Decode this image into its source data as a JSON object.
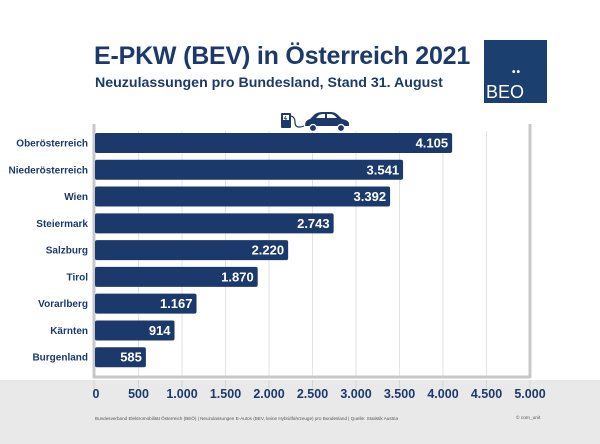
{
  "header": {
    "title": "E-PKW (BEV) in Österreich 2021",
    "subtitle": "Neuzulassungen pro Bundesland, Stand 31. August"
  },
  "logo": {
    "dots": "••",
    "text": "BEO"
  },
  "icons": {
    "charging": "charging-station-car-icon"
  },
  "colors": {
    "bar": "#1b3a6b",
    "text": "#1b3a6b",
    "grid": "#e2e2e2",
    "frame": "#c8c8c8",
    "band": "#e9e9e9"
  },
  "footer": {
    "source": "Bundesverband Elektromobilität Österreich (BEÖ) | Neuzulassungen E-Autos (BEV, keine Hybridfahrzeuge) pro Bundesland | Quelle: Statistik Austria",
    "credit": "© com_unit"
  },
  "chart_data": {
    "type": "bar",
    "orientation": "horizontal",
    "title": "E-PKW (BEV) in Österreich 2021",
    "subtitle": "Neuzulassungen pro Bundesland, Stand 31. August",
    "xlabel": "",
    "ylabel": "",
    "categories": [
      "Oberösterreich",
      "Niederösterreich",
      "Wien",
      "Steiermark",
      "Salzburg",
      "Tirol",
      "Vorarlberg",
      "Kärnten",
      "Burgenland"
    ],
    "values": [
      4105,
      3541,
      3392,
      2743,
      2220,
      1870,
      1167,
      914,
      585
    ],
    "value_labels": [
      "4.105",
      "3.541",
      "3.392",
      "2.743",
      "2.220",
      "1.870",
      "1.167",
      "914",
      "585"
    ],
    "xlim": [
      0,
      5000
    ],
    "xticks": [
      0,
      500,
      1000,
      1500,
      2000,
      2500,
      3000,
      3500,
      4000,
      4500,
      5000
    ],
    "xtick_labels": [
      "0",
      "500",
      "1.000",
      "1.500",
      "2.000",
      "2.500",
      "3.000",
      "3.500",
      "4.000",
      "4.500",
      "5.000"
    ],
    "grid": "vertical",
    "legend": "none"
  }
}
